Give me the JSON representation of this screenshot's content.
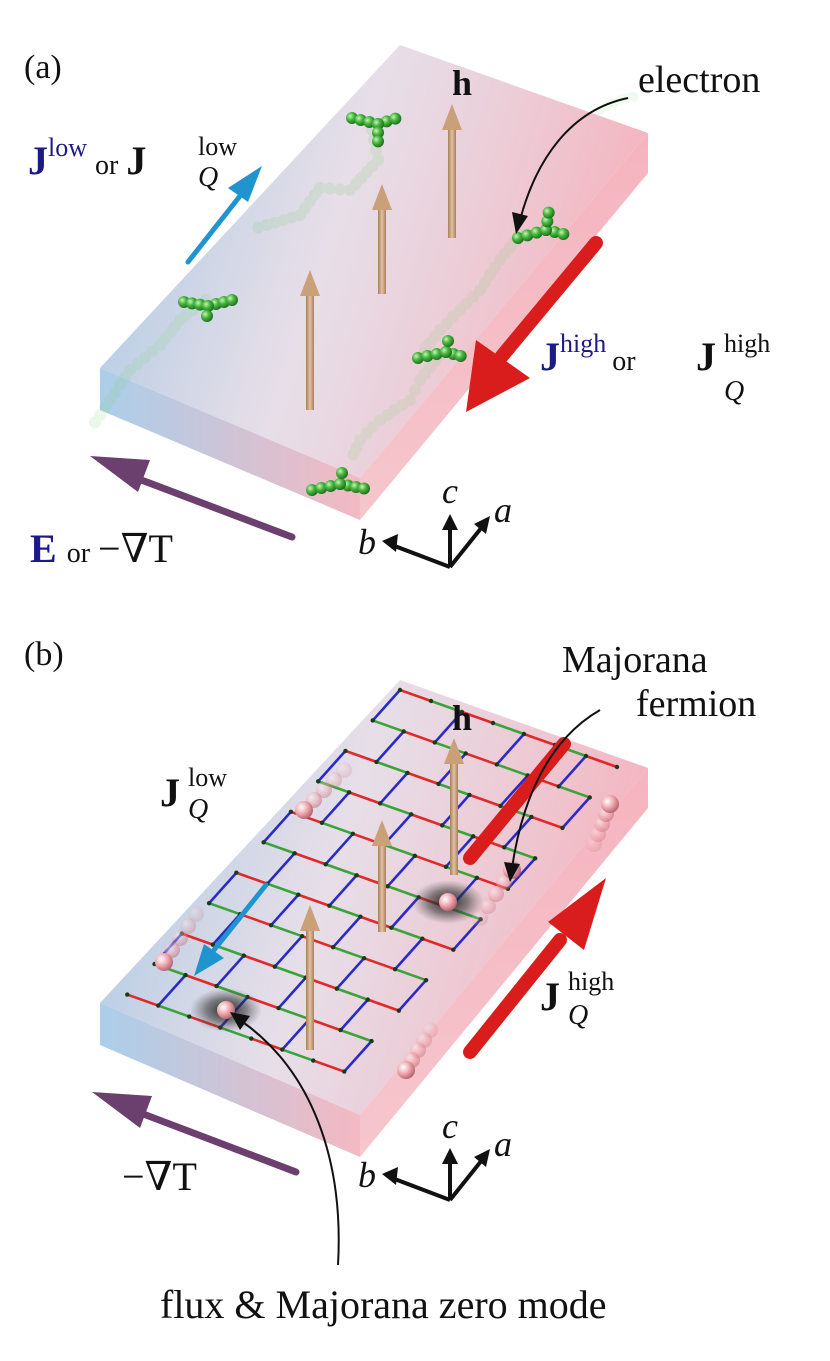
{
  "panel_a": {
    "label": "(a)",
    "field": "h",
    "electron": "electron",
    "j_low": "J",
    "j_low_sup": "low",
    "or_1": "or",
    "jq_low": "J",
    "jq_low_sup": "low",
    "jq_low_sub": "Q",
    "j_high": "J",
    "j_high_sup": "high",
    "or_2": "or",
    "jq_high": "J",
    "jq_high_sup": "high",
    "jq_high_sub": "Q",
    "drive_E": "E",
    "or_3": "or",
    "drive_gradT": "−∇T",
    "axes": {
      "a": "a",
      "b": "b",
      "c": "c"
    }
  },
  "panel_b": {
    "label": "(b)",
    "field": "h",
    "majorana_1": "Majorana",
    "majorana_2": "fermion",
    "jq_low": "J",
    "jq_low_sup": "low",
    "jq_low_sub": "Q",
    "jq_high": "J",
    "jq_high_sup": "high",
    "jq_high_sub": "Q",
    "drive_gradT": "−∇T",
    "axes": {
      "a": "a",
      "b": "b",
      "c": "c"
    },
    "flux_label": "flux & Majorana zero mode"
  },
  "colors": {
    "slab_blue": "#7fb3dc",
    "slab_pink": "#f2a7b2",
    "flow_blue": "#1f94cf",
    "flow_red": "#d91c1c",
    "field_tan": "#c9a078",
    "drive_purple": "#6b3f6e",
    "electron_green": "#3fb23a",
    "bond_red": "#e02a2a",
    "bond_green": "#3aa33a",
    "bond_blue": "#2a2ac8",
    "label_navy": "#1c1a86"
  },
  "icons": [
    "electron-sphere",
    "majorana-sphere",
    "flux-vortex"
  ]
}
